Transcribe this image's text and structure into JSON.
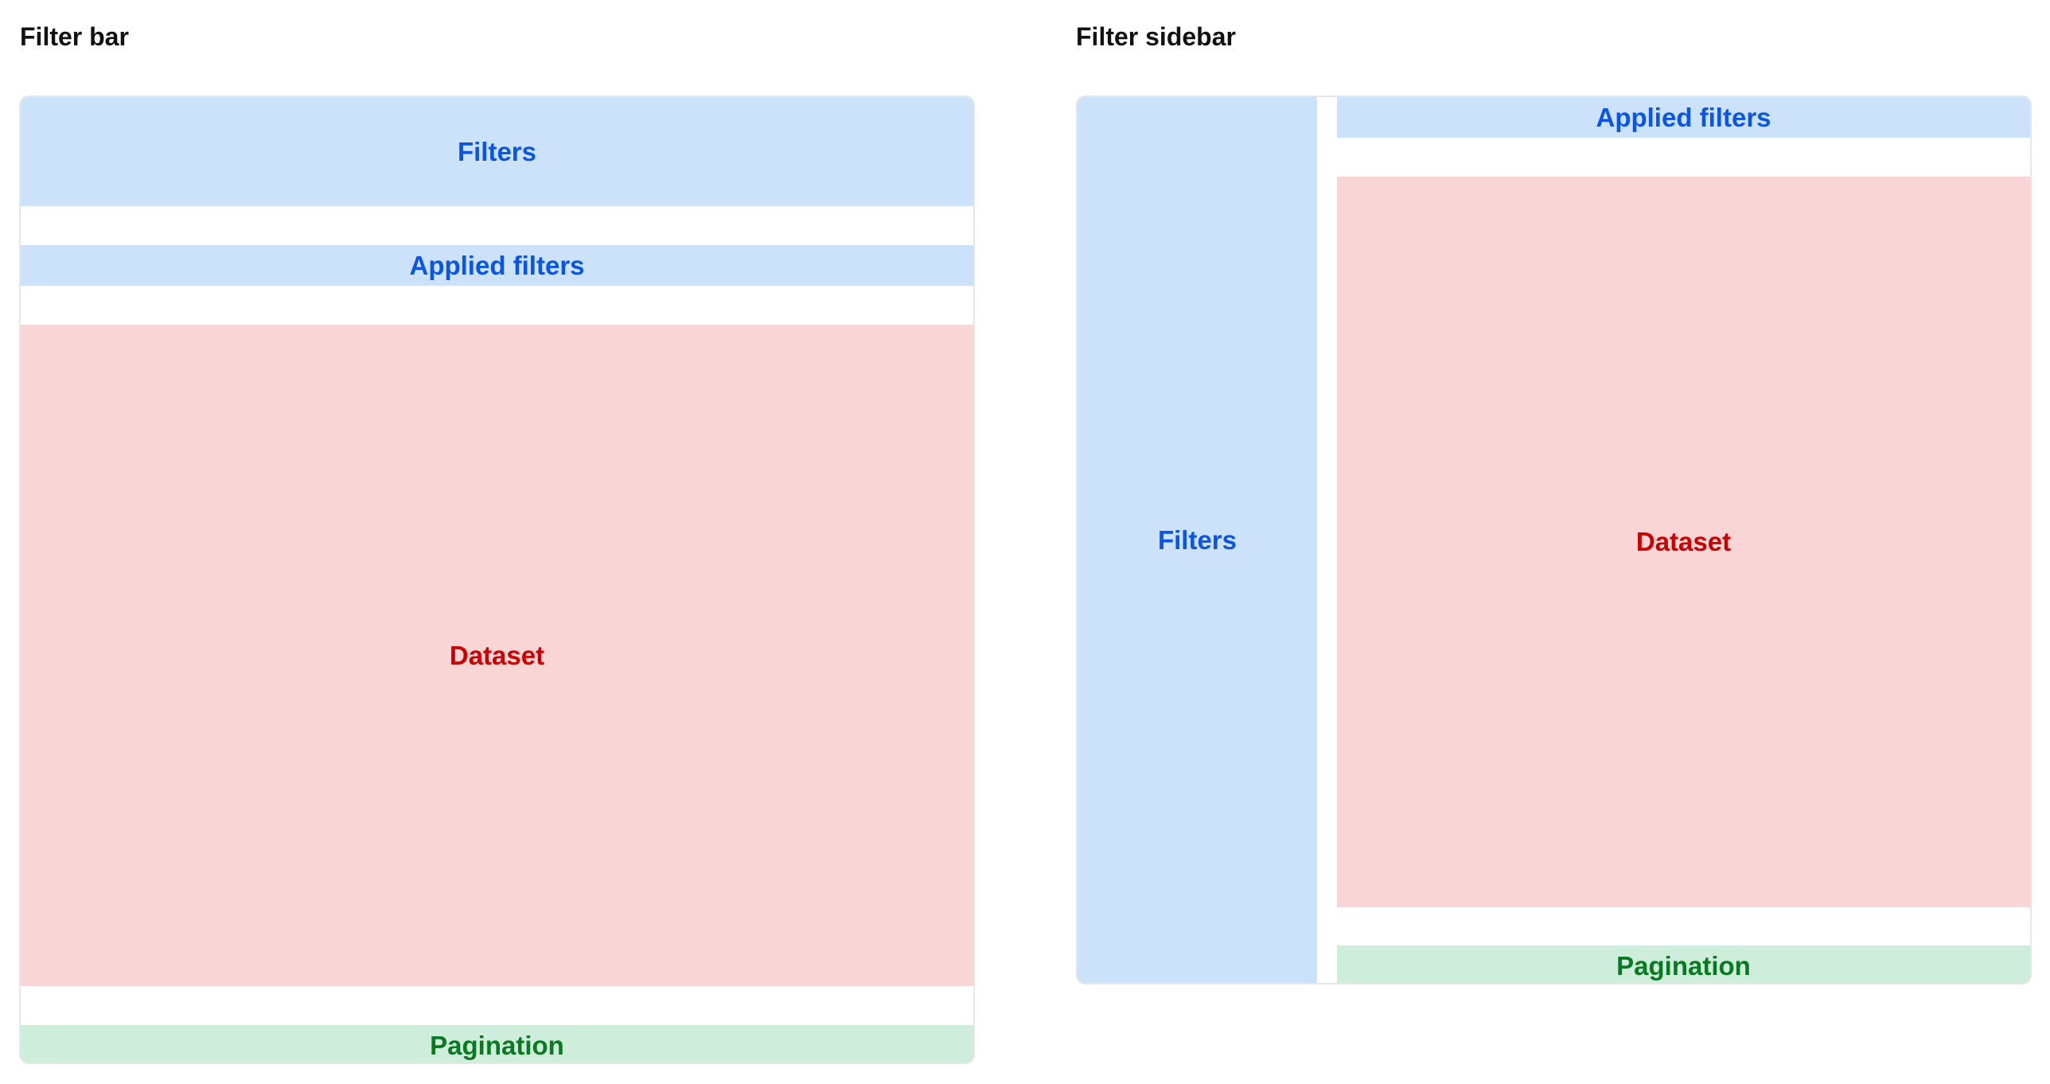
{
  "filter_bar": {
    "title": "Filter bar",
    "filters": "Filters",
    "applied_filters": "Applied filters",
    "dataset": "Dataset",
    "pagination": "Pagination"
  },
  "filter_sidebar": {
    "title": "Filter sidebar",
    "filters": "Filters",
    "applied_filters": "Applied filters",
    "dataset": "Dataset",
    "pagination": "Pagination"
  },
  "colors": {
    "filters": "#cce2fb",
    "dataset": "#f9d5d5",
    "pagination": "#ceeddb"
  }
}
